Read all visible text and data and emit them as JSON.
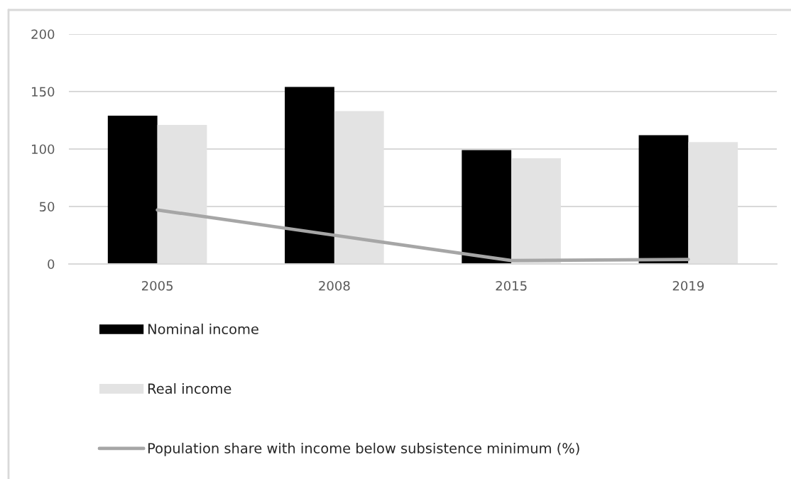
{
  "chart_data": {
    "type": "bar",
    "categories": [
      "2005",
      "2008",
      "2015",
      "2019"
    ],
    "series": [
      {
        "name": "Nominal income",
        "color": "#000000",
        "values": [
          129,
          154,
          99,
          112
        ]
      },
      {
        "name": "Real income",
        "color": "#e3e3e3",
        "values": [
          121,
          133,
          92,
          106
        ]
      },
      {
        "name": "Population share with income below subsistence minimum (%)",
        "type": "line",
        "color": "#a6a6a6",
        "values": [
          47,
          25,
          3,
          4
        ]
      }
    ],
    "ylim": [
      0,
      200
    ],
    "yticks": [
      0,
      50,
      100,
      150,
      200
    ],
    "grid": "y",
    "legend": "bottom"
  }
}
